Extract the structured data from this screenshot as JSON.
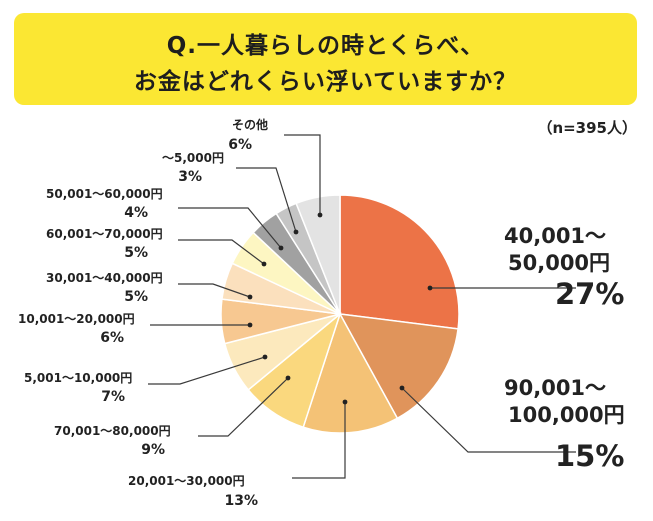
{
  "title": {
    "line1": "Q.一人暮らしの時とくらべ、",
    "line2": "お金はどれくらい浮いていますか？"
  },
  "sample_note": "（n=395人）",
  "chart_data": {
    "type": "pie",
    "title": "Q.一人暮らしの時とくらべ、お金はどれくらい浮いていますか？",
    "unit": "%",
    "start_angle_deg": 0,
    "direction": "clockwise",
    "slices": [
      {
        "name": "40,001～50,000円",
        "value": 27,
        "label": "27%",
        "color": "#ec7347"
      },
      {
        "name": "90,001～100,000円",
        "value": 15,
        "label": "15%",
        "color": "#e0945b"
      },
      {
        "name": "20,001～30,000円",
        "value": 13,
        "label": "13%",
        "color": "#f4c276"
      },
      {
        "name": "70,001～80,000円",
        "value": 9,
        "label": "9%",
        "color": "#fad87e"
      },
      {
        "name": "5,001～10,000円",
        "value": 7,
        "label": "7%",
        "color": "#fce9bd"
      },
      {
        "name": "10,001～20,000円",
        "value": 6,
        "label": "6%",
        "color": "#f7c891"
      },
      {
        "name": "30,001～40,000円",
        "value": 5,
        "label": "5%",
        "color": "#fbe0bd"
      },
      {
        "name": "60,001～70,000円",
        "value": 5,
        "label": "5%",
        "color": "#fdf6c2"
      },
      {
        "name": "50,001～60,000円",
        "value": 4,
        "label": "4%",
        "color": "#a1a1a1"
      },
      {
        "name": "～5,000円",
        "value": 3,
        "label": "3%",
        "color": "#c5c5c5"
      },
      {
        "name": "その他",
        "value": 6,
        "label": "6%",
        "color": "#e3e3e3"
      }
    ]
  }
}
